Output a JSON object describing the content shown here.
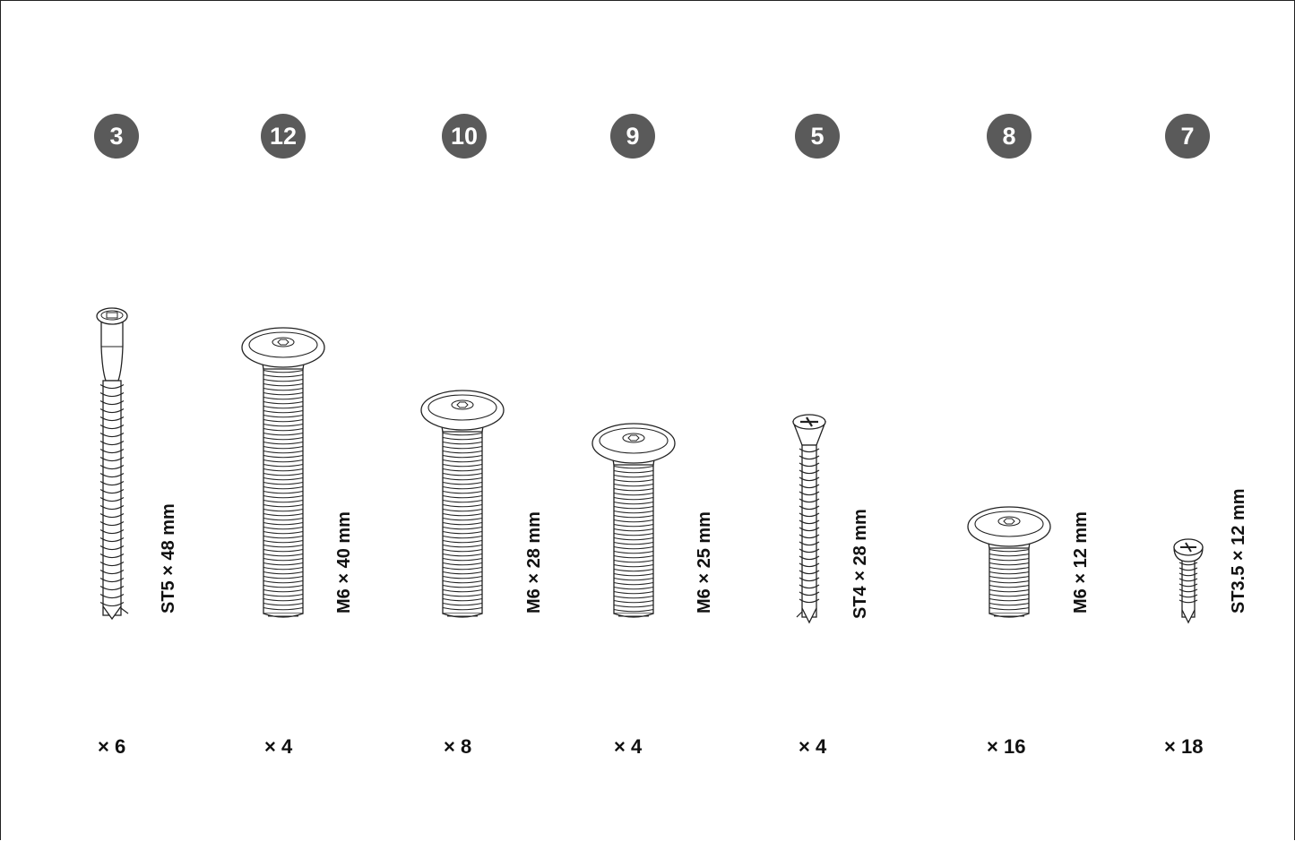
{
  "parts": [
    {
      "id": "3",
      "label": "ST5 × 48 mm",
      "quantity": "× 6",
      "type": "cam-bolt"
    },
    {
      "id": "12",
      "label": "M6 × 40 mm",
      "quantity": "× 4",
      "type": "machine-hex"
    },
    {
      "id": "10",
      "label": "M6 × 28 mm",
      "quantity": "× 8",
      "type": "machine-hex"
    },
    {
      "id": "9",
      "label": "M6 × 25 mm",
      "quantity": "× 4",
      "type": "machine-hex"
    },
    {
      "id": "5",
      "label": "ST4 × 28 mm",
      "quantity": "× 4",
      "type": "phillips-countersunk-wood"
    },
    {
      "id": "8",
      "label": "M6 × 12 mm",
      "quantity": "× 16",
      "type": "machine-hex"
    },
    {
      "id": "7",
      "label": "ST3.5 × 12 mm",
      "quantity": "× 18",
      "type": "phillips-pan-self-tapping"
    }
  ]
}
